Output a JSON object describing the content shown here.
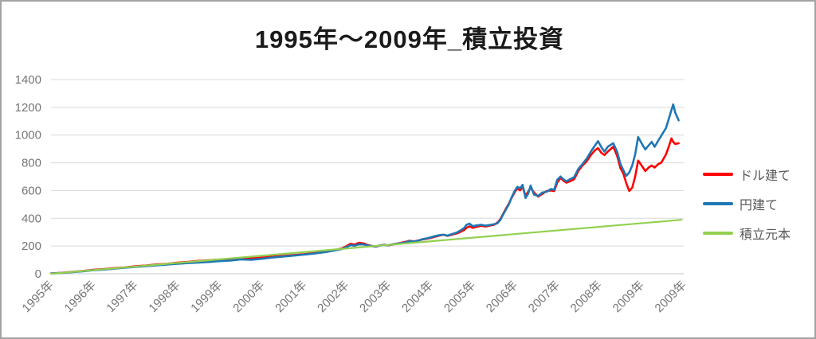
{
  "chart_data": {
    "type": "line",
    "title": "1995年～2009年_積立投資",
    "xlabel": "",
    "ylabel": "",
    "ylim": [
      0,
      1400
    ],
    "y_ticks": [
      0,
      200,
      400,
      600,
      800,
      1000,
      1200,
      1400
    ],
    "xlim": [
      0,
      15
    ],
    "x_tick_labels": [
      "1995年",
      "1996年",
      "1997年",
      "1998年",
      "1999年",
      "2000年",
      "2001年",
      "2002年",
      "2003年",
      "2004年",
      "2005年",
      "2006年",
      "2007年",
      "2008年",
      "2009年",
      "2009年"
    ],
    "grid": "horizontal",
    "legend_position": "right",
    "legend_entries": [
      "ドル建て",
      "円建て",
      "積立元本"
    ],
    "series": [
      {
        "name": "ドル建て",
        "key": "usd",
        "color": "#ff0000",
        "points": [
          [
            0,
            2
          ],
          [
            0.25,
            7
          ],
          [
            0.5,
            13
          ],
          [
            0.75,
            20
          ],
          [
            1,
            28
          ],
          [
            1.25,
            33
          ],
          [
            1.5,
            41
          ],
          [
            1.75,
            46
          ],
          [
            2,
            54
          ],
          [
            2.25,
            59
          ],
          [
            2.5,
            67
          ],
          [
            2.75,
            72
          ],
          [
            3,
            80
          ],
          [
            3.25,
            86
          ],
          [
            3.5,
            93
          ],
          [
            3.75,
            97
          ],
          [
            4,
            102
          ],
          [
            4.25,
            105
          ],
          [
            4.5,
            112
          ],
          [
            4.75,
            110
          ],
          [
            5,
            116
          ],
          [
            5.25,
            123
          ],
          [
            5.5,
            128
          ],
          [
            5.75,
            135
          ],
          [
            6,
            141
          ],
          [
            6.25,
            149
          ],
          [
            6.5,
            159
          ],
          [
            6.75,
            172
          ],
          [
            6.9,
            183
          ],
          [
            7,
            198
          ],
          [
            7.1,
            216
          ],
          [
            7.2,
            210
          ],
          [
            7.3,
            224
          ],
          [
            7.42,
            218
          ],
          [
            7.5,
            208
          ],
          [
            7.62,
            199
          ],
          [
            7.7,
            195
          ],
          [
            7.8,
            203
          ],
          [
            7.9,
            209
          ],
          [
            8,
            204
          ],
          [
            8.1,
            211
          ],
          [
            8.2,
            217
          ],
          [
            8.3,
            223
          ],
          [
            8.42,
            231
          ],
          [
            8.5,
            238
          ],
          [
            8.6,
            233
          ],
          [
            8.72,
            241
          ],
          [
            8.8,
            247
          ],
          [
            8.9,
            252
          ],
          [
            9,
            258
          ],
          [
            9.1,
            267
          ],
          [
            9.2,
            275
          ],
          [
            9.3,
            281
          ],
          [
            9.4,
            273
          ],
          [
            9.5,
            281
          ],
          [
            9.62,
            291
          ],
          [
            9.7,
            301
          ],
          [
            9.8,
            316
          ],
          [
            9.85,
            331
          ],
          [
            9.92,
            341
          ],
          [
            10,
            331
          ],
          [
            10.1,
            339
          ],
          [
            10.2,
            346
          ],
          [
            10.3,
            341
          ],
          [
            10.42,
            349
          ],
          [
            10.5,
            353
          ],
          [
            10.58,
            367
          ],
          [
            10.65,
            392
          ],
          [
            10.72,
            432
          ],
          [
            10.78,
            466
          ],
          [
            10.85,
            502
          ],
          [
            10.92,
            546
          ],
          [
            11,
            592
          ],
          [
            11.06,
            616
          ],
          [
            11.12,
            601
          ],
          [
            11.18,
            627
          ],
          [
            11.25,
            561
          ],
          [
            11.31,
            591
          ],
          [
            11.37,
            621
          ],
          [
            11.45,
            586
          ],
          [
            11.55,
            556
          ],
          [
            11.65,
            576
          ],
          [
            11.75,
            596
          ],
          [
            11.85,
            601
          ],
          [
            11.93,
            596
          ],
          [
            12,
            657
          ],
          [
            12.08,
            691
          ],
          [
            12.15,
            671
          ],
          [
            12.22,
            657
          ],
          [
            12.3,
            666
          ],
          [
            12.4,
            681
          ],
          [
            12.5,
            741
          ],
          [
            12.6,
            781
          ],
          [
            12.7,
            811
          ],
          [
            12.8,
            856
          ],
          [
            12.9,
            891
          ],
          [
            12.97,
            906
          ],
          [
            13.05,
            871
          ],
          [
            13.12,
            856
          ],
          [
            13.2,
            881
          ],
          [
            13.33,
            916
          ],
          [
            13.42,
            851
          ],
          [
            13.5,
            761
          ],
          [
            13.57,
            721
          ],
          [
            13.64,
            651
          ],
          [
            13.71,
            597
          ],
          [
            13.78,
            621
          ],
          [
            13.85,
            701
          ],
          [
            13.92,
            816
          ],
          [
            14,
            781
          ],
          [
            14.09,
            741
          ],
          [
            14.17,
            766
          ],
          [
            14.24,
            781
          ],
          [
            14.31,
            766
          ],
          [
            14.4,
            791
          ],
          [
            14.47,
            801
          ],
          [
            14.58,
            861
          ],
          [
            14.65,
            921
          ],
          [
            14.71,
            976
          ],
          [
            14.75,
            951
          ],
          [
            14.8,
            936
          ],
          [
            14.88,
            941
          ]
        ]
      },
      {
        "name": "円建て",
        "key": "jpy",
        "color": "#1f77b4",
        "points": [
          [
            0,
            2
          ],
          [
            0.25,
            6
          ],
          [
            0.5,
            12
          ],
          [
            0.75,
            18
          ],
          [
            1,
            25
          ],
          [
            1.25,
            30
          ],
          [
            1.5,
            37
          ],
          [
            1.75,
            43
          ],
          [
            2,
            50
          ],
          [
            2.25,
            55
          ],
          [
            2.5,
            61
          ],
          [
            2.75,
            66
          ],
          [
            3,
            72
          ],
          [
            3.25,
            77
          ],
          [
            3.5,
            81
          ],
          [
            3.75,
            85
          ],
          [
            4,
            91
          ],
          [
            4.25,
            95
          ],
          [
            4.5,
            103
          ],
          [
            4.75,
            101
          ],
          [
            5,
            108
          ],
          [
            5.25,
            117
          ],
          [
            5.5,
            124
          ],
          [
            5.75,
            131
          ],
          [
            6,
            138
          ],
          [
            6.25,
            146
          ],
          [
            6.5,
            156
          ],
          [
            6.75,
            169
          ],
          [
            6.9,
            179
          ],
          [
            7,
            192
          ],
          [
            7.1,
            206
          ],
          [
            7.2,
            202
          ],
          [
            7.3,
            213
          ],
          [
            7.42,
            211
          ],
          [
            7.5,
            204
          ],
          [
            7.62,
            198
          ],
          [
            7.7,
            196
          ],
          [
            7.8,
            204
          ],
          [
            7.9,
            207
          ],
          [
            8,
            206
          ],
          [
            8.1,
            213
          ],
          [
            8.2,
            216
          ],
          [
            8.3,
            221
          ],
          [
            8.42,
            227
          ],
          [
            8.5,
            235
          ],
          [
            8.6,
            231
          ],
          [
            8.72,
            240
          ],
          [
            8.8,
            249
          ],
          [
            8.9,
            255
          ],
          [
            9,
            262
          ],
          [
            9.1,
            271
          ],
          [
            9.2,
            278
          ],
          [
            9.3,
            282
          ],
          [
            9.4,
            275
          ],
          [
            9.5,
            286
          ],
          [
            9.62,
            297
          ],
          [
            9.7,
            311
          ],
          [
            9.8,
            331
          ],
          [
            9.85,
            353
          ],
          [
            9.92,
            361
          ],
          [
            10,
            343
          ],
          [
            10.1,
            349
          ],
          [
            10.2,
            353
          ],
          [
            10.3,
            347
          ],
          [
            10.42,
            353
          ],
          [
            10.5,
            357
          ],
          [
            10.58,
            363
          ],
          [
            10.65,
            387
          ],
          [
            10.72,
            427
          ],
          [
            10.78,
            461
          ],
          [
            10.85,
            497
          ],
          [
            10.92,
            551
          ],
          [
            11,
            602
          ],
          [
            11.06,
            627
          ],
          [
            11.12,
            616
          ],
          [
            11.18,
            641
          ],
          [
            11.25,
            546
          ],
          [
            11.31,
            576
          ],
          [
            11.37,
            636
          ],
          [
            11.45,
            571
          ],
          [
            11.55,
            561
          ],
          [
            11.65,
            586
          ],
          [
            11.75,
            591
          ],
          [
            11.85,
            611
          ],
          [
            11.93,
            606
          ],
          [
            12,
            677
          ],
          [
            12.08,
            701
          ],
          [
            12.15,
            681
          ],
          [
            12.22,
            666
          ],
          [
            12.3,
            681
          ],
          [
            12.4,
            696
          ],
          [
            12.5,
            756
          ],
          [
            12.6,
            791
          ],
          [
            12.7,
            831
          ],
          [
            12.8,
            881
          ],
          [
            12.9,
            926
          ],
          [
            12.97,
            956
          ],
          [
            13.05,
            911
          ],
          [
            13.12,
            881
          ],
          [
            13.2,
            916
          ],
          [
            13.33,
            941
          ],
          [
            13.42,
            881
          ],
          [
            13.5,
            791
          ],
          [
            13.57,
            746
          ],
          [
            13.64,
            706
          ],
          [
            13.71,
            731
          ],
          [
            13.78,
            781
          ],
          [
            13.85,
            861
          ],
          [
            13.92,
            986
          ],
          [
            14,
            941
          ],
          [
            14.09,
            896
          ],
          [
            14.17,
            926
          ],
          [
            14.24,
            951
          ],
          [
            14.31,
            916
          ],
          [
            14.4,
            961
          ],
          [
            14.47,
            996
          ],
          [
            14.58,
            1051
          ],
          [
            14.65,
            1121
          ],
          [
            14.71,
            1181
          ],
          [
            14.75,
            1221
          ],
          [
            14.8,
            1161
          ],
          [
            14.88,
            1106
          ]
        ]
      },
      {
        "name": "積立元本",
        "key": "principal",
        "color": "#92d050",
        "points": [
          [
            0,
            0
          ],
          [
            14.95,
            389
          ]
        ]
      }
    ]
  },
  "colors": {
    "background": "#ffffff",
    "border": "#a3a3a3",
    "gridline": "#d9d9d9",
    "axis_line": "#c6c6c6",
    "tick_label": "#767676",
    "legend_text": "#595959",
    "title_text": "#1a1a1a"
  }
}
